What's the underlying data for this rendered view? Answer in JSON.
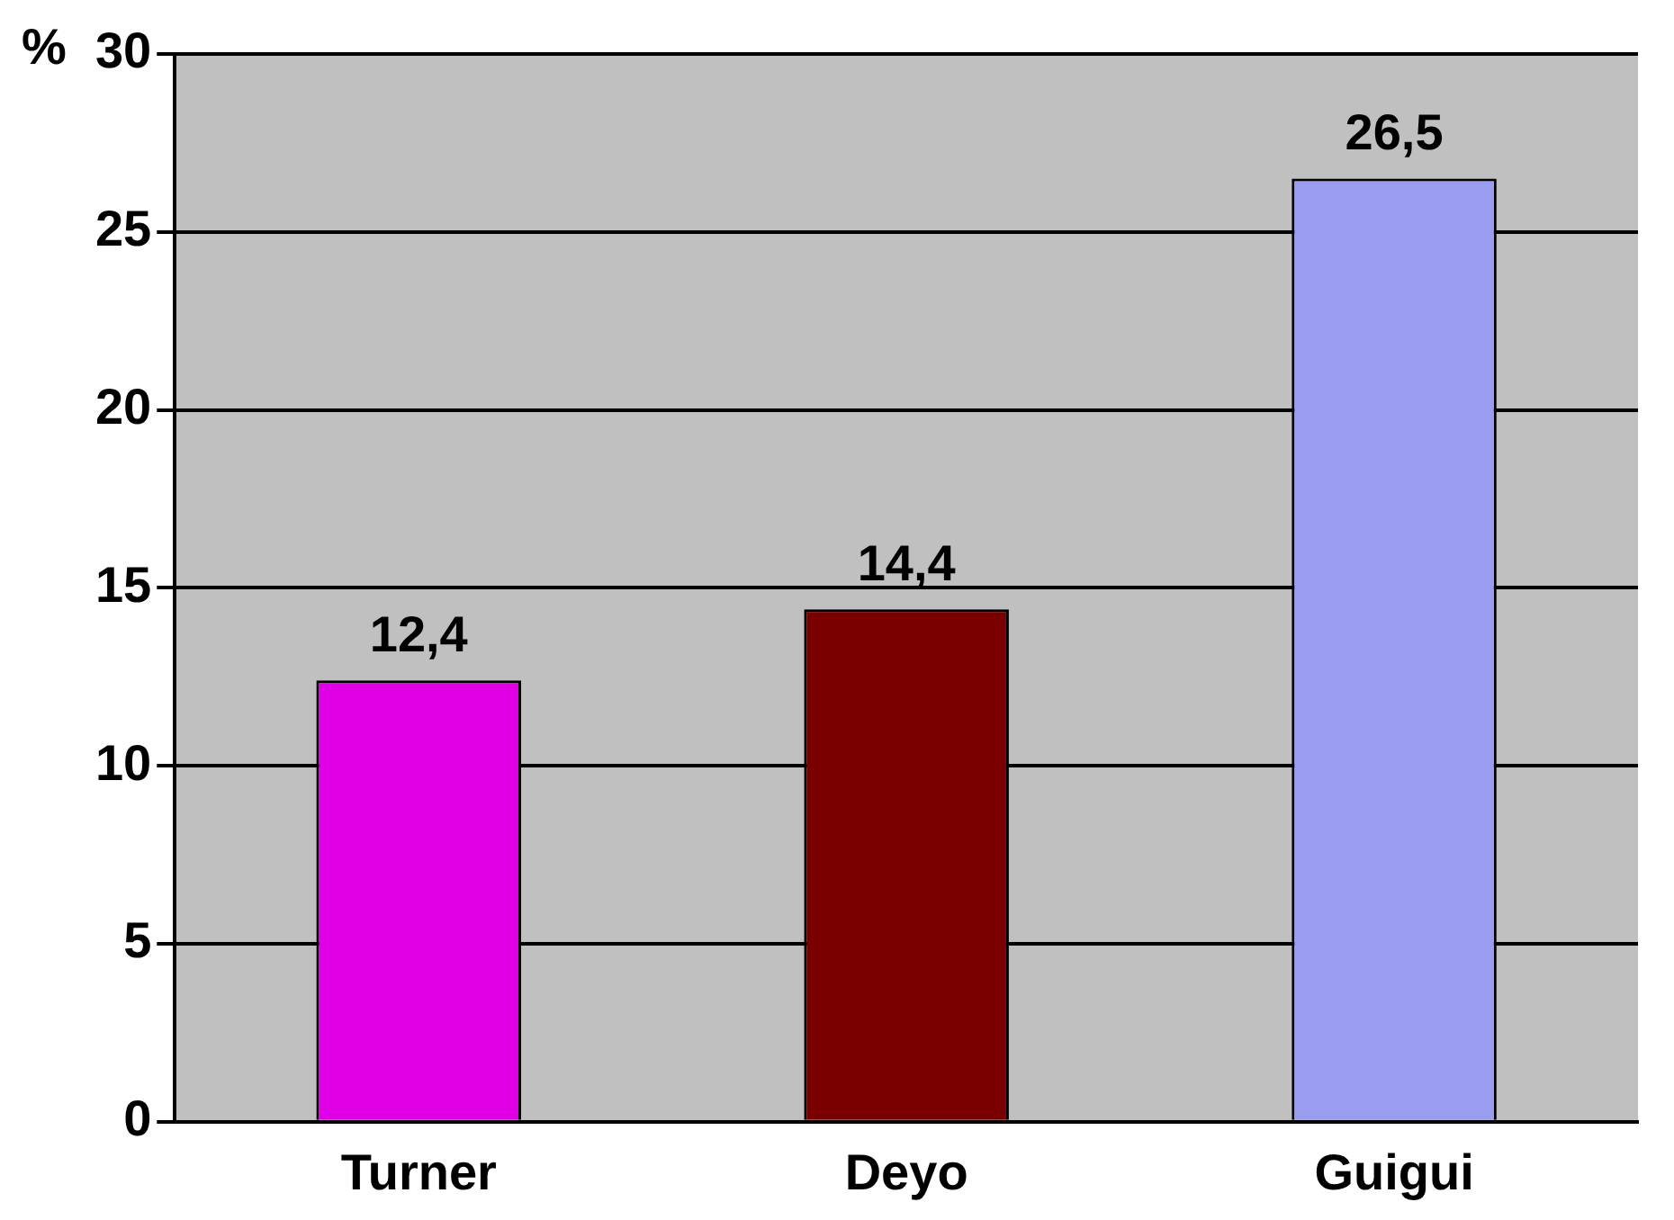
{
  "chart_data": {
    "type": "bar",
    "ylabel": "%",
    "categories": [
      "Turner",
      "Deyo",
      "Guigui"
    ],
    "values": [
      12.4,
      14.4,
      26.5
    ],
    "colors": [
      "#e100e6",
      "#7a0000",
      "#9a9cf0"
    ],
    "value_labels": [
      "12,4",
      "14,4",
      "26,5"
    ],
    "ylim": [
      0,
      30
    ],
    "yticks": [
      0,
      5,
      10,
      15,
      20,
      25,
      30
    ],
    "grid": "y",
    "legend": false
  }
}
